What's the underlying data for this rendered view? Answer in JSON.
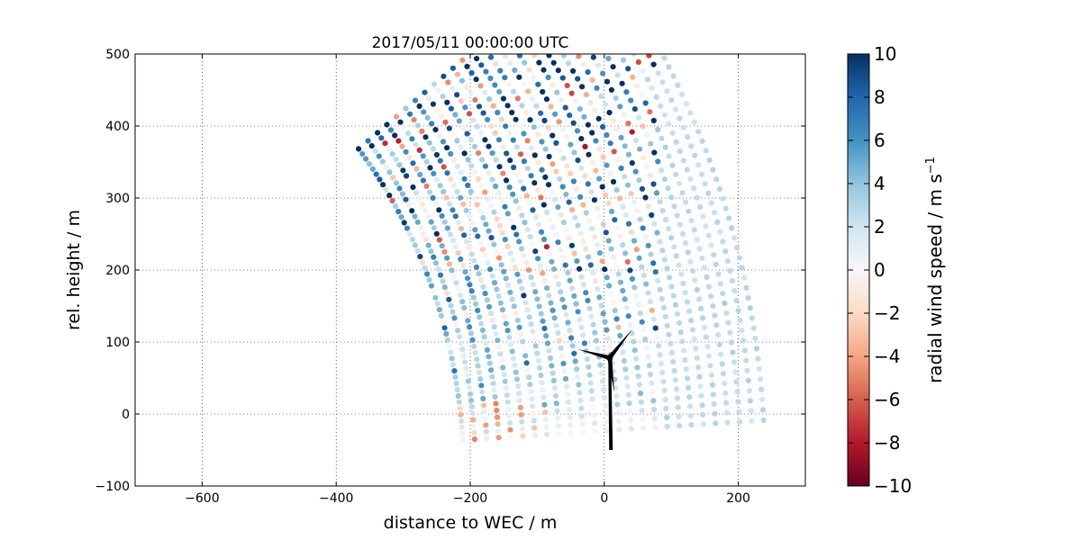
{
  "chart_data": {
    "type": "scatter",
    "title": "2017/05/11 00:00:00 UTC",
    "xlabel": "distance to WEC / m",
    "ylabel": "rel. height / m",
    "xlim": [
      -700,
      300
    ],
    "ylim": [
      -100,
      500
    ],
    "x_ticks": [
      "−600",
      "−400",
      "−200",
      "0",
      "200"
    ],
    "y_ticks": [
      "−100",
      "0",
      "100",
      "200",
      "300",
      "400",
      "500"
    ],
    "grid": true,
    "colorbar": {
      "label": "radial wind speed / m s",
      "label_exponent": "−1",
      "range": [
        -10,
        10
      ],
      "ticks": [
        "10",
        "8",
        "6",
        "4",
        "2",
        "0",
        "−2",
        "−4",
        "−6",
        "−8",
        "−10"
      ],
      "colormap": "RdBu"
    },
    "scan": {
      "origin_m": [
        -930,
        -80
      ],
      "range_min_m": 720,
      "range_max_m": 1170,
      "range_step_m": 18,
      "elevation_min_deg": 3.5,
      "elevation_max_deg": 39,
      "elevation_step_deg": 0.7,
      "description_note": "RHI lidar scan points colored by radial wind speed"
    },
    "turbine": {
      "tower_base": [
        10,
        -50
      ],
      "hub": [
        8,
        78
      ],
      "blade_tips": [
        [
          -40,
          90
        ],
        [
          42,
          118
        ],
        [
          15,
          30
        ]
      ]
    }
  },
  "colors": {
    "min": "#67001f",
    "mid": "#f7f7f7",
    "max": "#053061",
    "turbine": "#000000"
  }
}
